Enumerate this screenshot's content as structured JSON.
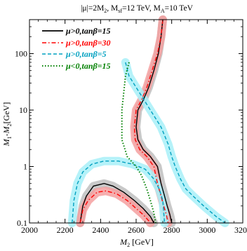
{
  "chart_data": {
    "type": "line",
    "title": "|μ|=2M₂, M_sf=12 TeV, M_A=10 TeV",
    "title_parts": {
      "mu": "|μ|=2M",
      "mu_sub": "2",
      "msf": ", M",
      "msf_sub": "sf",
      "msf_val": "=12 TeV, M",
      "ma_sub": "A",
      "ma_val": "=10 TeV"
    },
    "xlabel": "M₂ [GeV]",
    "xlabel_parts": {
      "main": "M",
      "sub": "2",
      "unit": " [GeV]"
    },
    "ylabel": "M₁-M₂[GeV]",
    "ylabel_parts": {
      "m1": "M",
      "s1": "1",
      "mid": "-M",
      "s2": "2",
      "unit": "[GeV]"
    },
    "xlim": [
      2000,
      3200
    ],
    "ylim": [
      0.1,
      400
    ],
    "yscale": "log",
    "x_ticks": [
      2000,
      2200,
      2400,
      2600,
      2800,
      3000,
      3200
    ],
    "x_tick_labels": [
      "2000",
      "2200",
      "2400",
      "2600",
      "2800",
      "3000",
      "3200"
    ],
    "y_ticks": [
      0.1,
      1,
      10,
      100
    ],
    "y_tick_labels": [
      "0.1",
      "1",
      "10",
      "100"
    ],
    "grid": false,
    "legend_position": "top-left",
    "series": [
      {
        "name": "μ>0,tanβ=15",
        "color": "#000000",
        "dash": "solid",
        "band_color": "#c0c0c0",
        "segments": [
          [
            [
              2750,
              400
            ],
            [
              2740,
              200
            ],
            [
              2725,
              100
            ],
            [
              2700,
              50
            ],
            [
              2670,
              25
            ],
            [
              2640,
              15
            ],
            [
              2610,
              10
            ],
            [
              2600,
              5
            ],
            [
              2610,
              3
            ],
            [
              2640,
              2
            ],
            [
              2680,
              1.5
            ],
            [
              2720,
              1
            ],
            [
              2740,
              0.5
            ],
            [
              2760,
              0.3
            ],
            [
              2775,
              0.2
            ],
            [
              2790,
              0.14
            ],
            [
              2800,
              0.1
            ]
          ],
          [
            [
              2285,
              0.1
            ],
            [
              2300,
              0.2
            ],
            [
              2320,
              0.3
            ],
            [
              2360,
              0.45
            ],
            [
              2420,
              0.5
            ],
            [
              2470,
              0.45
            ],
            [
              2530,
              0.35
            ],
            [
              2590,
              0.25
            ],
            [
              2640,
              0.18
            ],
            [
              2680,
              0.13
            ],
            [
              2700,
              0.1
            ]
          ]
        ]
      },
      {
        "name": "μ>0,tanβ=30",
        "color": "#ff0000",
        "dash": "dashdot",
        "band_color": "#f4a0a0",
        "segments": [
          [
            [
              2750,
              400
            ],
            [
              2740,
              200
            ],
            [
              2720,
              100
            ],
            [
              2690,
              50
            ],
            [
              2660,
              25
            ],
            [
              2630,
              15
            ],
            [
              2600,
              10
            ],
            [
              2590,
              5
            ],
            [
              2595,
              3
            ],
            [
              2620,
              2
            ],
            [
              2660,
              1.5
            ],
            [
              2700,
              1
            ],
            [
              2720,
              0.5
            ],
            [
              2740,
              0.3
            ],
            [
              2755,
              0.2
            ],
            [
              2770,
              0.14
            ],
            [
              2780,
              0.1
            ]
          ],
          [
            [
              2285,
              0.1
            ],
            [
              2300,
              0.17
            ],
            [
              2330,
              0.25
            ],
            [
              2380,
              0.35
            ],
            [
              2430,
              0.37
            ],
            [
              2490,
              0.33
            ],
            [
              2550,
              0.25
            ],
            [
              2600,
              0.18
            ],
            [
              2640,
              0.14
            ],
            [
              2670,
              0.11
            ],
            [
              2680,
              0.1
            ]
          ]
        ]
      },
      {
        "name": "μ>0,tanβ=5",
        "color": "#00a0c0",
        "dash": "dashed",
        "band_color": "#a8f0f8",
        "segments": [
          [
            [
              2540,
              70
            ],
            [
              2560,
              40
            ],
            [
              2620,
              20
            ],
            [
              2680,
              10
            ],
            [
              2740,
              5
            ],
            [
              2780,
              2.5
            ],
            [
              2800,
              1.5
            ],
            [
              2820,
              1
            ],
            [
              2850,
              0.6
            ],
            [
              2880,
              0.4
            ],
            [
              2920,
              0.3
            ],
            [
              2980,
              0.2
            ],
            [
              3050,
              0.13
            ],
            [
              3100,
              0.1
            ]
          ],
          [
            [
              2240,
              0.1
            ],
            [
              2250,
              0.25
            ],
            [
              2270,
              0.5
            ],
            [
              2300,
              0.8
            ],
            [
              2350,
              1.1
            ],
            [
              2420,
              1.25
            ],
            [
              2500,
              1.25
            ],
            [
              2580,
              1.1
            ],
            [
              2650,
              0.9
            ],
            [
              2700,
              0.6
            ],
            [
              2730,
              0.4
            ],
            [
              2750,
              0.25
            ],
            [
              2760,
              0.1
            ]
          ]
        ]
      },
      {
        "name": "μ<0,tanβ=15",
        "color": "#008000",
        "dash": "dotted",
        "band_color": "",
        "segments": [
          [
            [
              2560,
              70
            ],
            [
              2540,
              40
            ],
            [
              2530,
              20
            ],
            [
              2520,
              10
            ],
            [
              2520,
              3
            ],
            [
              2550,
              1.5
            ],
            [
              2600,
              1
            ],
            [
              2630,
              0.7
            ],
            [
              2660,
              0.4
            ],
            [
              2680,
              0.25
            ],
            [
              2700,
              0.15
            ],
            [
              2710,
              0.1
            ]
          ]
        ]
      }
    ]
  }
}
